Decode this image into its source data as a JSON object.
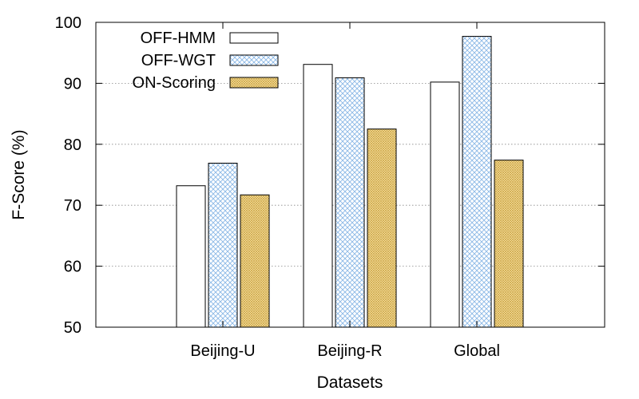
{
  "chart_data": {
    "type": "bar",
    "title": "",
    "xlabel": "Datasets",
    "ylabel": "F-Score (%)",
    "ylim": [
      50,
      100
    ],
    "yticks": [
      50,
      60,
      70,
      80,
      90,
      100
    ],
    "grid": true,
    "legend_position": "top-left",
    "categories": [
      "Beijing-U",
      "Beijing-R",
      "Global"
    ],
    "series": [
      {
        "name": "OFF-HMM",
        "values": [
          73.2,
          93.1,
          90.2
        ],
        "fill": "plain"
      },
      {
        "name": "OFF-WGT",
        "values": [
          76.9,
          90.9,
          97.7
        ],
        "fill": "crosshatch"
      },
      {
        "name": "ON-Scoring",
        "values": [
          71.7,
          82.5,
          77.4
        ],
        "fill": "dense-crosshatch"
      }
    ],
    "colors": {
      "plain": "#ffffff",
      "crosshatch": "#8ab8e6",
      "dense-crosshatch": "#c8a040",
      "dense-background": "#fbe7a8"
    }
  }
}
